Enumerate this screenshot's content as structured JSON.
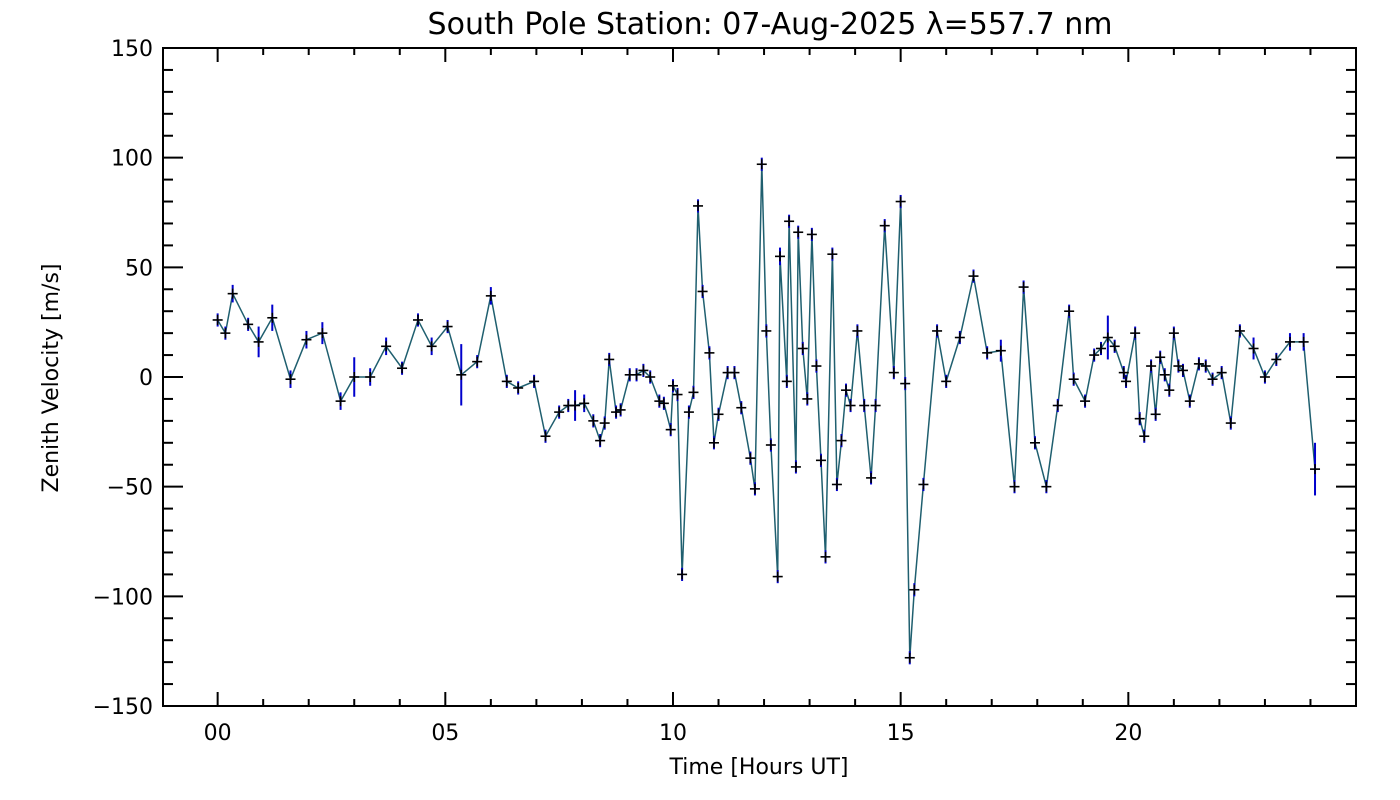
{
  "chart_data": {
    "type": "line",
    "title": "South Pole Station: 07-Aug-2025 λ=557.7 nm",
    "xlabel": "Time [Hours UT]",
    "ylabel": "Zenith Velocity [m/s]",
    "xlim": [
      -1.2,
      25
    ],
    "ylim": [
      -150,
      150
    ],
    "x_ticks": [
      0,
      5,
      10,
      15,
      20
    ],
    "x_tick_labels": [
      "00",
      "05",
      "10",
      "15",
      "20"
    ],
    "y_ticks": [
      150,
      100,
      50,
      0,
      -50,
      -100,
      -150
    ],
    "y_tick_labels": [
      "150",
      "100",
      "50",
      "0",
      "−50",
      "−100",
      "−150"
    ],
    "grid": false,
    "colors": {
      "line": "#1f5f6f",
      "errorbar": "#0000cc",
      "marker": "#000000",
      "axis": "#000000"
    },
    "series": [
      {
        "points": [
          {
            "x": 0.0,
            "y": 26,
            "err": 3
          },
          {
            "x": 0.17,
            "y": 20,
            "err": 3
          },
          {
            "x": 0.33,
            "y": 38,
            "err": 4
          },
          {
            "x": 0.67,
            "y": 24,
            "err": 3
          },
          {
            "x": 0.9,
            "y": 16,
            "err": 7
          },
          {
            "x": 1.2,
            "y": 27,
            "err": 6
          },
          {
            "x": 1.6,
            "y": -1,
            "err": 4
          },
          {
            "x": 1.95,
            "y": 17,
            "err": 4
          },
          {
            "x": 2.3,
            "y": 20,
            "err": 5
          },
          {
            "x": 2.7,
            "y": -11,
            "err": 4
          },
          {
            "x": 3.0,
            "y": 0,
            "err": 9
          },
          {
            "x": 3.35,
            "y": 0,
            "err": 4
          },
          {
            "x": 3.7,
            "y": 14,
            "err": 4
          },
          {
            "x": 4.05,
            "y": 4,
            "err": 3
          },
          {
            "x": 4.4,
            "y": 26,
            "err": 3
          },
          {
            "x": 4.7,
            "y": 14,
            "err": 4
          },
          {
            "x": 5.05,
            "y": 23,
            "err": 3
          },
          {
            "x": 5.35,
            "y": 1,
            "err": 14
          },
          {
            "x": 5.7,
            "y": 7,
            "err": 3
          },
          {
            "x": 6.0,
            "y": 37,
            "err": 4
          },
          {
            "x": 6.35,
            "y": -2,
            "err": 3
          },
          {
            "x": 6.6,
            "y": -5,
            "err": 3
          },
          {
            "x": 6.95,
            "y": -2,
            "err": 3
          },
          {
            "x": 7.2,
            "y": -27,
            "err": 3
          },
          {
            "x": 7.5,
            "y": -16,
            "err": 3
          },
          {
            "x": 7.7,
            "y": -13,
            "err": 3
          },
          {
            "x": 7.85,
            "y": -13,
            "err": 7
          },
          {
            "x": 8.05,
            "y": -12,
            "err": 4
          },
          {
            "x": 8.25,
            "y": -20,
            "err": 3
          },
          {
            "x": 8.4,
            "y": -29,
            "err": 3
          },
          {
            "x": 8.5,
            "y": -21,
            "err": 3
          },
          {
            "x": 8.6,
            "y": 8,
            "err": 3
          },
          {
            "x": 8.75,
            "y": -16,
            "err": 3
          },
          {
            "x": 8.85,
            "y": -15,
            "err": 3
          },
          {
            "x": 9.05,
            "y": 1,
            "err": 3
          },
          {
            "x": 9.2,
            "y": 1,
            "err": 3
          },
          {
            "x": 9.35,
            "y": 3,
            "err": 3
          },
          {
            "x": 9.5,
            "y": 0,
            "err": 3
          },
          {
            "x": 9.7,
            "y": -11,
            "err": 3
          },
          {
            "x": 9.8,
            "y": -12,
            "err": 3
          },
          {
            "x": 9.95,
            "y": -24,
            "err": 3
          },
          {
            "x": 10.0,
            "y": -4,
            "err": 3
          },
          {
            "x": 10.1,
            "y": -8,
            "err": 3
          },
          {
            "x": 10.2,
            "y": -90,
            "err": 3
          },
          {
            "x": 10.35,
            "y": -16,
            "err": 3
          },
          {
            "x": 10.45,
            "y": -7,
            "err": 3
          },
          {
            "x": 10.55,
            "y": 78,
            "err": 3
          },
          {
            "x": 10.65,
            "y": 39,
            "err": 3
          },
          {
            "x": 10.8,
            "y": 11,
            "err": 3
          },
          {
            "x": 10.9,
            "y": -30,
            "err": 3
          },
          {
            "x": 11.0,
            "y": -17,
            "err": 3
          },
          {
            "x": 11.2,
            "y": 2,
            "err": 3
          },
          {
            "x": 11.35,
            "y": 2,
            "err": 3
          },
          {
            "x": 11.5,
            "y": -14,
            "err": 3
          },
          {
            "x": 11.7,
            "y": -37,
            "err": 3
          },
          {
            "x": 11.8,
            "y": -51,
            "err": 3
          },
          {
            "x": 11.95,
            "y": 97,
            "err": 3
          },
          {
            "x": 12.05,
            "y": 21,
            "err": 3
          },
          {
            "x": 12.15,
            "y": -31,
            "err": 3
          },
          {
            "x": 12.3,
            "y": -91,
            "err": 3
          },
          {
            "x": 12.35,
            "y": 55,
            "err": 4
          },
          {
            "x": 12.5,
            "y": -2,
            "err": 3
          },
          {
            "x": 12.55,
            "y": 71,
            "err": 3
          },
          {
            "x": 12.7,
            "y": -41,
            "err": 3
          },
          {
            "x": 12.75,
            "y": 66,
            "err": 3
          },
          {
            "x": 12.85,
            "y": 13,
            "err": 3
          },
          {
            "x": 12.95,
            "y": -10,
            "err": 3
          },
          {
            "x": 13.05,
            "y": 65,
            "err": 3
          },
          {
            "x": 13.15,
            "y": 5,
            "err": 3
          },
          {
            "x": 13.25,
            "y": -38,
            "err": 3
          },
          {
            "x": 13.35,
            "y": -82,
            "err": 3
          },
          {
            "x": 13.5,
            "y": 56,
            "err": 3
          },
          {
            "x": 13.6,
            "y": -49,
            "err": 3
          },
          {
            "x": 13.7,
            "y": -29,
            "err": 3
          },
          {
            "x": 13.8,
            "y": -6,
            "err": 3
          },
          {
            "x": 13.9,
            "y": -13,
            "err": 3
          },
          {
            "x": 14.05,
            "y": 21,
            "err": 3
          },
          {
            "x": 14.2,
            "y": -13,
            "err": 3
          },
          {
            "x": 14.35,
            "y": -46,
            "err": 3
          },
          {
            "x": 14.45,
            "y": -13,
            "err": 3
          },
          {
            "x": 14.65,
            "y": 69,
            "err": 3
          },
          {
            "x": 14.85,
            "y": 2,
            "err": 3
          },
          {
            "x": 15.0,
            "y": 80,
            "err": 3
          },
          {
            "x": 15.1,
            "y": -3,
            "err": 3
          },
          {
            "x": 15.2,
            "y": -128,
            "err": 3
          },
          {
            "x": 15.3,
            "y": -97,
            "err": 3
          },
          {
            "x": 15.5,
            "y": -49,
            "err": 3
          },
          {
            "x": 15.8,
            "y": 21,
            "err": 3
          },
          {
            "x": 16.0,
            "y": -2,
            "err": 3
          },
          {
            "x": 16.3,
            "y": 18,
            "err": 3
          },
          {
            "x": 16.6,
            "y": 46,
            "err": 3
          },
          {
            "x": 16.9,
            "y": 11,
            "err": 3
          },
          {
            "x": 17.2,
            "y": 12,
            "err": 5
          },
          {
            "x": 17.5,
            "y": -50,
            "err": 3
          },
          {
            "x": 17.7,
            "y": 41,
            "err": 3
          },
          {
            "x": 17.95,
            "y": -30,
            "err": 3
          },
          {
            "x": 18.2,
            "y": -50,
            "err": 3
          },
          {
            "x": 18.45,
            "y": -13,
            "err": 3
          },
          {
            "x": 18.7,
            "y": 30,
            "err": 3
          },
          {
            "x": 18.8,
            "y": -1,
            "err": 3
          },
          {
            "x": 19.05,
            "y": -11,
            "err": 3
          },
          {
            "x": 19.25,
            "y": 10,
            "err": 3
          },
          {
            "x": 19.4,
            "y": 13,
            "err": 3
          },
          {
            "x": 19.55,
            "y": 18,
            "err": 10
          },
          {
            "x": 19.7,
            "y": 14,
            "err": 3
          },
          {
            "x": 19.9,
            "y": 2,
            "err": 3
          },
          {
            "x": 19.95,
            "y": -2,
            "err": 3
          },
          {
            "x": 20.15,
            "y": 20,
            "err": 3
          },
          {
            "x": 20.25,
            "y": -19,
            "err": 3
          },
          {
            "x": 20.35,
            "y": -27,
            "err": 3
          },
          {
            "x": 20.5,
            "y": 5,
            "err": 3
          },
          {
            "x": 20.6,
            "y": -17,
            "err": 3
          },
          {
            "x": 20.7,
            "y": 9,
            "err": 3
          },
          {
            "x": 20.8,
            "y": 1,
            "err": 3
          },
          {
            "x": 20.9,
            "y": -6,
            "err": 3
          },
          {
            "x": 21.0,
            "y": 20,
            "err": 3
          },
          {
            "x": 21.1,
            "y": 5,
            "err": 3
          },
          {
            "x": 21.2,
            "y": 3,
            "err": 3
          },
          {
            "x": 21.35,
            "y": -11,
            "err": 3
          },
          {
            "x": 21.55,
            "y": 6,
            "err": 3
          },
          {
            "x": 21.7,
            "y": 5,
            "err": 3
          },
          {
            "x": 21.85,
            "y": -1,
            "err": 3
          },
          {
            "x": 22.05,
            "y": 2,
            "err": 3
          },
          {
            "x": 22.25,
            "y": -21,
            "err": 3
          },
          {
            "x": 22.45,
            "y": 21,
            "err": 3
          },
          {
            "x": 22.75,
            "y": 13,
            "err": 5
          },
          {
            "x": 23.0,
            "y": 0,
            "err": 3
          },
          {
            "x": 23.25,
            "y": 8,
            "err": 3
          },
          {
            "x": 23.55,
            "y": 16,
            "err": 4
          },
          {
            "x": 23.85,
            "y": 16,
            "err": 4
          },
          {
            "x": 24.1,
            "y": -42,
            "err": 12
          }
        ]
      }
    ]
  }
}
